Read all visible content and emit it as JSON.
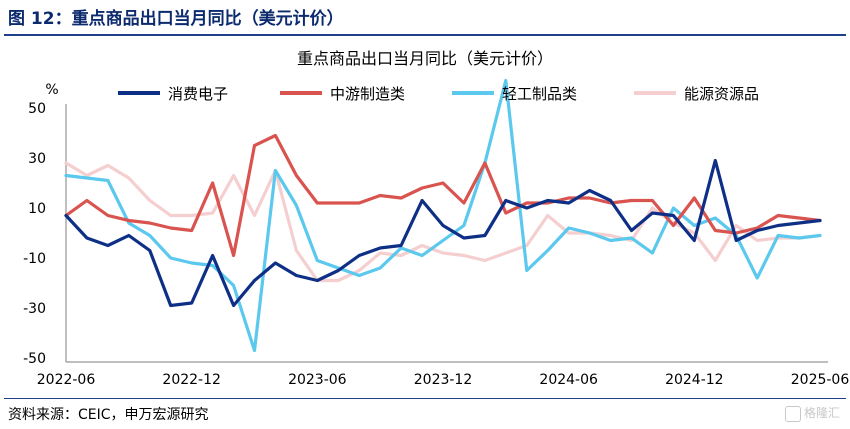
{
  "figure": {
    "title": "图 12：重点商品出口当月同比（美元计价）",
    "source": "资料来源：CEIC，申万宏源研究",
    "watermark": "格隆汇"
  },
  "chart_data": {
    "type": "line",
    "title": "重点商品出口当月同比（美元计价）",
    "ylabel": "%",
    "ylim": [
      -50,
      50
    ],
    "yticks": [
      50,
      30,
      10,
      -10,
      -30,
      -50
    ],
    "xticks": [
      "2022-06",
      "2022-12",
      "2023-06",
      "2023-12",
      "2024-06",
      "2024-12",
      "2025-06"
    ],
    "grid": false,
    "legend_position": "top",
    "x": [
      "2022-06",
      "2022-07",
      "2022-08",
      "2022-09",
      "2022-10",
      "2022-11",
      "2022-12",
      "2023-01",
      "2023-02",
      "2023-03",
      "2023-04",
      "2023-05",
      "2023-06",
      "2023-07",
      "2023-08",
      "2023-09",
      "2023-10",
      "2023-11",
      "2023-12",
      "2024-01",
      "2024-02",
      "2024-03",
      "2024-04",
      "2024-05",
      "2024-06",
      "2024-07",
      "2024-08",
      "2024-09",
      "2024-10",
      "2024-11",
      "2024-12",
      "2025-01",
      "2025-02",
      "2025-03",
      "2025-04",
      "2025-05",
      "2025-06"
    ],
    "series": [
      {
        "name": "消费电子",
        "color": "#0e2f86",
        "values": [
          7,
          -2,
          -5,
          -1,
          -7,
          -29,
          -28,
          -9,
          -29,
          -19,
          -12,
          -17,
          -19,
          -15,
          -9,
          -6,
          -5,
          13,
          3,
          -2,
          -1,
          13,
          10,
          13,
          12,
          17,
          13,
          1,
          8,
          7,
          -3,
          29,
          -3,
          1,
          3,
          4,
          5
        ]
      },
      {
        "name": "中游制造类",
        "color": "#d9534f",
        "values": [
          7,
          13,
          7,
          5,
          4,
          2,
          1,
          20,
          -9,
          35,
          39,
          23,
          12,
          12,
          12,
          15,
          14,
          18,
          20,
          12,
          28,
          8,
          12,
          12,
          14,
          14,
          12,
          13,
          13,
          3,
          14,
          1,
          0,
          2,
          7,
          6,
          5
        ]
      },
      {
        "name": "轻工制品类",
        "color": "#5bc8ee",
        "values": [
          23,
          22,
          21,
          4,
          -1,
          -10,
          -12,
          -13,
          -21,
          -47,
          25,
          11,
          -11,
          -14,
          -17,
          -14,
          -6,
          -9,
          -3,
          3,
          28,
          61,
          -15,
          -7,
          2,
          0,
          -3,
          -2,
          -8,
          10,
          3,
          6,
          -1,
          -18,
          -1,
          -2,
          -1
        ]
      },
      {
        "name": "能源资源品",
        "color": "#f5cfcf",
        "values": [
          28,
          23,
          27,
          22,
          13,
          7,
          7,
          8,
          23,
          7,
          25,
          -7,
          -19,
          -19,
          -15,
          -8,
          -9,
          -5,
          -8,
          -9,
          -11,
          -8,
          -5,
          7,
          0,
          0,
          -1,
          -3,
          10,
          4,
          0,
          -11,
          3,
          -3,
          -2,
          -2,
          -1
        ]
      }
    ]
  }
}
